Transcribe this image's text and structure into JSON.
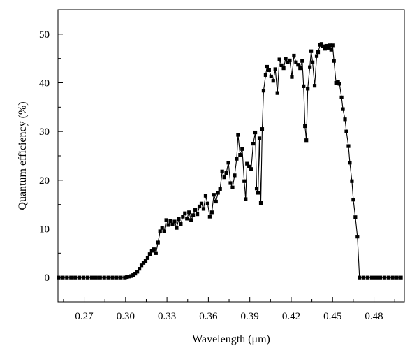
{
  "chart_data": {
    "type": "line",
    "title": "",
    "xlabel": "Wavelength (μm)",
    "ylabel": "Quantum efficiency (%)",
    "xlim": [
      0.251,
      0.502
    ],
    "ylim": [
      -5,
      55
    ],
    "xticks": [
      0.27,
      0.3,
      0.33,
      0.36,
      0.39,
      0.42,
      0.45,
      0.48
    ],
    "xtick_labels": [
      "0.27",
      "0.30",
      "0.33",
      "0.36",
      "0.39",
      "0.42",
      "0.45",
      "0.48"
    ],
    "yticks": [
      0,
      10,
      20,
      30,
      40,
      50
    ],
    "ytick_labels": [
      "0",
      "10",
      "20",
      "30",
      "40",
      "50"
    ],
    "grid": false,
    "legend": "none",
    "marker": "square",
    "series": [
      {
        "color": "#000000",
        "points": [
          [
            0.2515,
            0
          ],
          [
            0.2545,
            0
          ],
          [
            0.2575,
            0
          ],
          [
            0.2605,
            0
          ],
          [
            0.2635,
            0
          ],
          [
            0.2665,
            0
          ],
          [
            0.2695,
            0
          ],
          [
            0.2725,
            0
          ],
          [
            0.2755,
            0
          ],
          [
            0.2785,
            0
          ],
          [
            0.2815,
            0
          ],
          [
            0.2845,
            0
          ],
          [
            0.2875,
            0
          ],
          [
            0.2905,
            0
          ],
          [
            0.2935,
            0
          ],
          [
            0.2965,
            0
          ],
          [
            0.2995,
            0
          ],
          [
            0.301,
            0.1
          ],
          [
            0.3025,
            0.2
          ],
          [
            0.304,
            0.3
          ],
          [
            0.3055,
            0.5
          ],
          [
            0.307,
            0.8
          ],
          [
            0.3085,
            1.2
          ],
          [
            0.31,
            1.8
          ],
          [
            0.3115,
            2.5
          ],
          [
            0.313,
            3.0
          ],
          [
            0.3145,
            3.4
          ],
          [
            0.316,
            4.0
          ],
          [
            0.3175,
            4.8
          ],
          [
            0.319,
            5.5
          ],
          [
            0.3205,
            5.8
          ],
          [
            0.322,
            5.0
          ],
          [
            0.3235,
            7.2
          ],
          [
            0.325,
            9.5
          ],
          [
            0.3265,
            10.2
          ],
          [
            0.328,
            9.5
          ],
          [
            0.3295,
            11.8
          ],
          [
            0.331,
            10.8
          ],
          [
            0.3325,
            11.6
          ],
          [
            0.334,
            10.9
          ],
          [
            0.3355,
            11.5
          ],
          [
            0.337,
            10.2
          ],
          [
            0.3385,
            12.0
          ],
          [
            0.34,
            11.0
          ],
          [
            0.3415,
            12.5
          ],
          [
            0.343,
            13.2
          ],
          [
            0.3445,
            12.1
          ],
          [
            0.346,
            13.4
          ],
          [
            0.3475,
            11.8
          ],
          [
            0.349,
            12.8
          ],
          [
            0.3505,
            13.9
          ],
          [
            0.352,
            13.0
          ],
          [
            0.3535,
            14.6
          ],
          [
            0.355,
            15.2
          ],
          [
            0.3565,
            14.1
          ],
          [
            0.358,
            16.8
          ],
          [
            0.3595,
            15.2
          ],
          [
            0.361,
            12.5
          ],
          [
            0.3625,
            13.4
          ],
          [
            0.364,
            17.0
          ],
          [
            0.3655,
            15.6
          ],
          [
            0.367,
            17.4
          ],
          [
            0.3685,
            18.2
          ],
          [
            0.37,
            21.8
          ],
          [
            0.3715,
            20.6
          ],
          [
            0.373,
            21.5
          ],
          [
            0.3745,
            23.6
          ],
          [
            0.376,
            19.4
          ],
          [
            0.3775,
            18.5
          ],
          [
            0.379,
            21.0
          ],
          [
            0.3805,
            24.4
          ],
          [
            0.3815,
            29.3
          ],
          [
            0.383,
            25.2
          ],
          [
            0.3845,
            26.4
          ],
          [
            0.386,
            19.8
          ],
          [
            0.387,
            16.1
          ],
          [
            0.388,
            23.4
          ],
          [
            0.3895,
            22.8
          ],
          [
            0.391,
            22.3
          ],
          [
            0.3925,
            27.5
          ],
          [
            0.394,
            29.8
          ],
          [
            0.395,
            18.3
          ],
          [
            0.396,
            17.4
          ],
          [
            0.397,
            28.6
          ],
          [
            0.398,
            15.3
          ],
          [
            0.399,
            30.5
          ],
          [
            0.4,
            38.4
          ],
          [
            0.4015,
            41.6
          ],
          [
            0.4025,
            43.3
          ],
          [
            0.404,
            42.6
          ],
          [
            0.4055,
            41.3
          ],
          [
            0.407,
            40.4
          ],
          [
            0.4085,
            42.8
          ],
          [
            0.41,
            37.9
          ],
          [
            0.4115,
            44.8
          ],
          [
            0.413,
            43.6
          ],
          [
            0.4145,
            43.0
          ],
          [
            0.416,
            45.0
          ],
          [
            0.4175,
            44.2
          ],
          [
            0.419,
            44.6
          ],
          [
            0.4205,
            41.2
          ],
          [
            0.422,
            45.6
          ],
          [
            0.4235,
            44.2
          ],
          [
            0.425,
            43.7
          ],
          [
            0.4265,
            43.0
          ],
          [
            0.428,
            44.5
          ],
          [
            0.429,
            39.3
          ],
          [
            0.43,
            31.1
          ],
          [
            0.431,
            28.2
          ],
          [
            0.432,
            38.8
          ],
          [
            0.4335,
            43.2
          ],
          [
            0.4345,
            46.5
          ],
          [
            0.4355,
            44.2
          ],
          [
            0.437,
            39.4
          ],
          [
            0.4385,
            45.5
          ],
          [
            0.4395,
            46.3
          ],
          [
            0.441,
            47.8
          ],
          [
            0.442,
            48.0
          ],
          [
            0.443,
            47.5
          ],
          [
            0.4445,
            47.0
          ],
          [
            0.4455,
            47.6
          ],
          [
            0.447,
            47.2
          ],
          [
            0.448,
            47.7
          ],
          [
            0.449,
            46.8
          ],
          [
            0.45,
            47.7
          ],
          [
            0.451,
            44.5
          ],
          [
            0.4525,
            40.0
          ],
          [
            0.454,
            40.2
          ],
          [
            0.455,
            39.8
          ],
          [
            0.4565,
            37.0
          ],
          [
            0.4575,
            34.6
          ],
          [
            0.459,
            32.5
          ],
          [
            0.46,
            30.0
          ],
          [
            0.4615,
            27.0
          ],
          [
            0.4625,
            23.6
          ],
          [
            0.464,
            19.8
          ],
          [
            0.465,
            16.0
          ],
          [
            0.4665,
            12.4
          ],
          [
            0.468,
            8.4
          ],
          [
            0.4695,
            0
          ],
          [
            0.4725,
            0
          ],
          [
            0.4755,
            0
          ],
          [
            0.4785,
            0
          ],
          [
            0.4815,
            0
          ],
          [
            0.4845,
            0
          ],
          [
            0.4875,
            0
          ],
          [
            0.4905,
            0
          ],
          [
            0.4935,
            0
          ],
          [
            0.4965,
            0
          ],
          [
            0.4995,
            0
          ]
        ]
      }
    ]
  }
}
